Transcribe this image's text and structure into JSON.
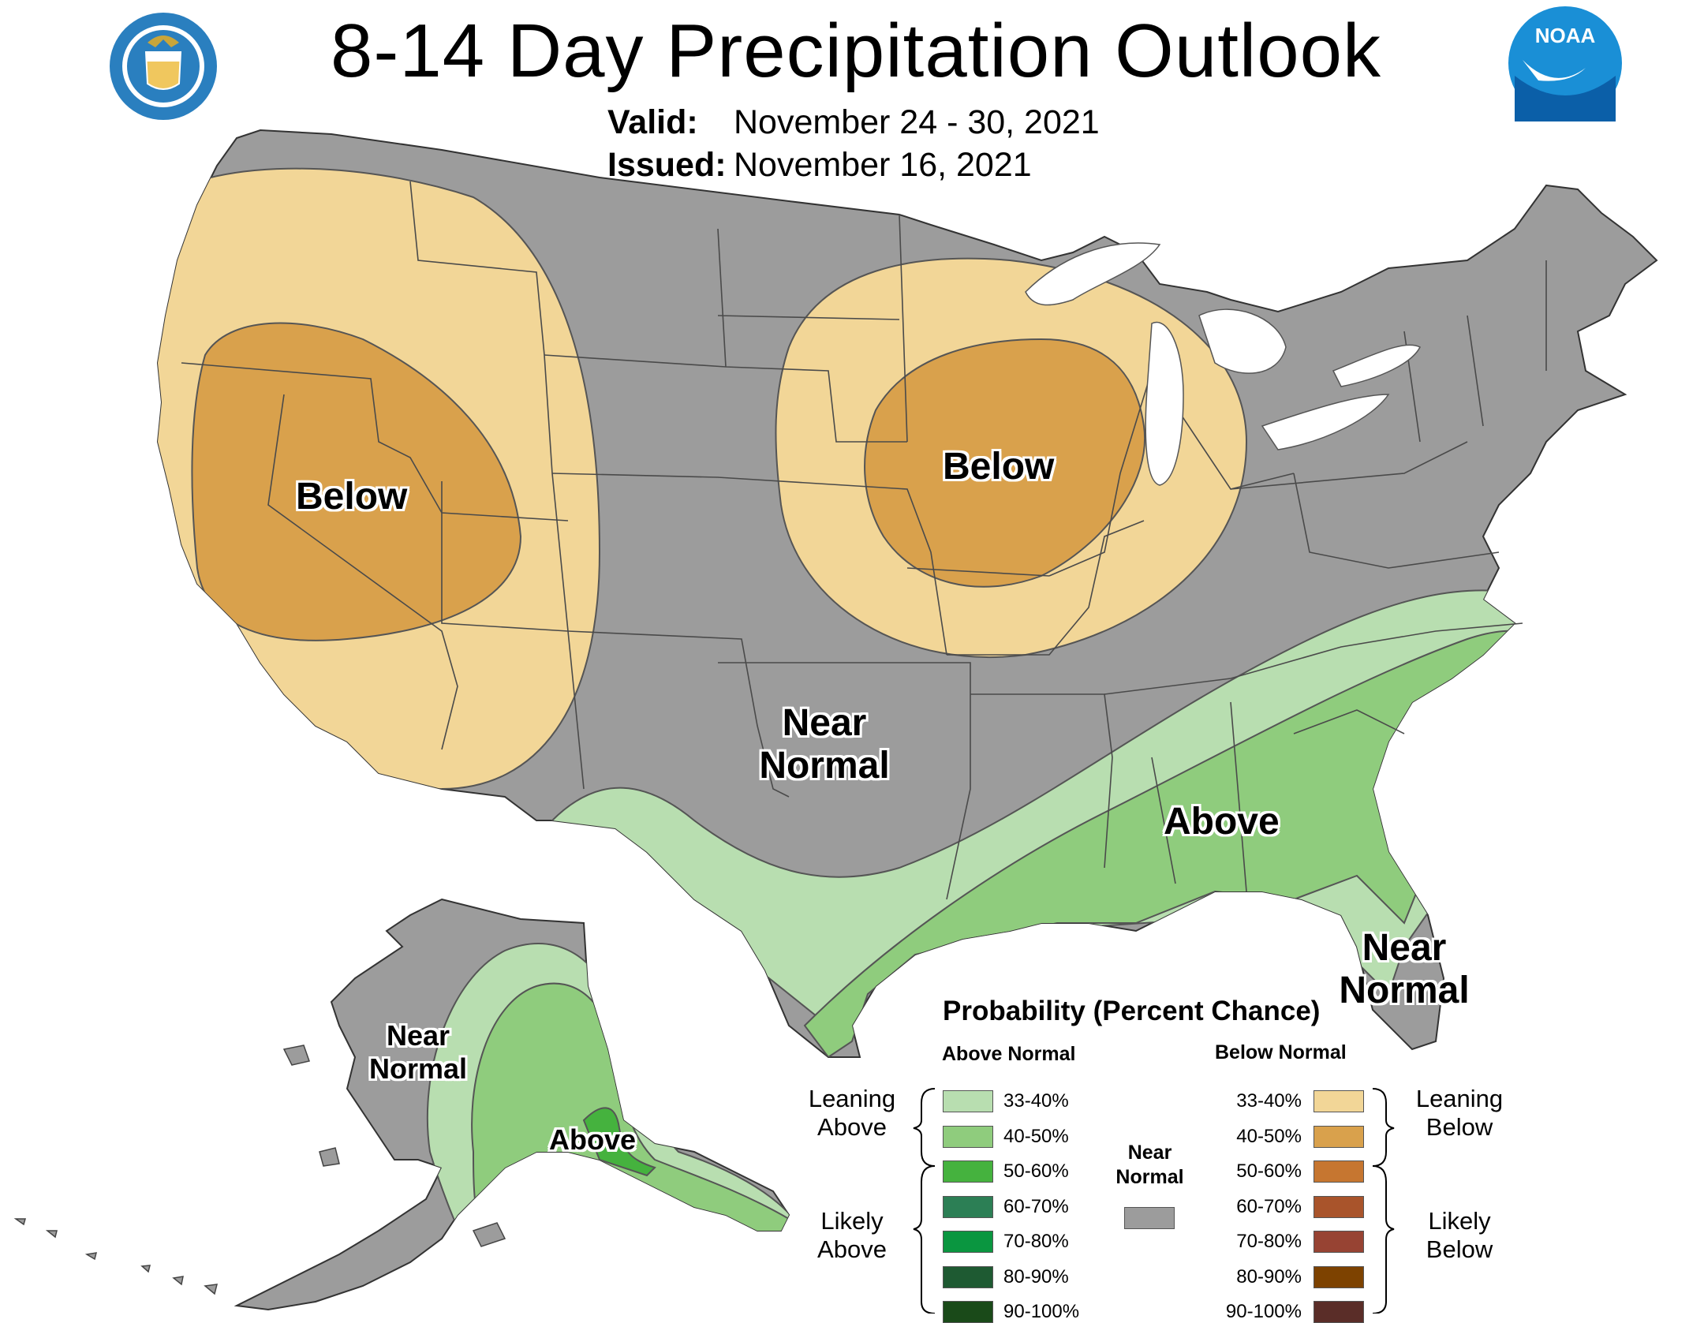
{
  "header": {
    "title": "8-14 Day Precipitation Outlook",
    "valid_label": "Valid:",
    "valid_dates": "November 24 - 30, 2021",
    "issued_label": "Issued:",
    "issued_date": "November 16, 2021"
  },
  "logos": {
    "left": "department-of-commerce-seal",
    "right": "noaa-logo",
    "right_text": "NOAA"
  },
  "map_labels": {
    "west_below": "Below",
    "midwest_below": "Below",
    "south_near_line1": "Near",
    "south_near_line2": "Normal",
    "southeast_above": "Above",
    "florida_near_line1": "Near",
    "florida_near_line2": "Normal",
    "alaska_near_line1": "Near",
    "alaska_near_line2": "Normal",
    "alaska_above": "Above"
  },
  "legend": {
    "title": "Probability (Percent Chance)",
    "above_header": "Above Normal",
    "below_header": "Below Normal",
    "near_label_line1": "Near",
    "near_label_line2": "Normal",
    "near_color": "#9c9c9c",
    "above_items": [
      {
        "range": "33-40%",
        "color": "#b8deb0"
      },
      {
        "range": "40-50%",
        "color": "#8fcc7d"
      },
      {
        "range": "50-60%",
        "color": "#45b23e"
      },
      {
        "range": "60-70%",
        "color": "#2c7f55"
      },
      {
        "range": "70-80%",
        "color": "#0a9640"
      },
      {
        "range": "80-90%",
        "color": "#1e5a32"
      },
      {
        "range": "90-100%",
        "color": "#1a4a19"
      }
    ],
    "below_items": [
      {
        "range": "33-40%",
        "color": "#f2d697"
      },
      {
        "range": "40-50%",
        "color": "#d9a14c"
      },
      {
        "range": "50-60%",
        "color": "#c67630"
      },
      {
        "range": "60-70%",
        "color": "#a9542b"
      },
      {
        "range": "70-80%",
        "color": "#974333"
      },
      {
        "range": "80-90%",
        "color": "#7d4200"
      },
      {
        "range": "90-100%",
        "color": "#5a2d28"
      }
    ],
    "leaning_above_line1": "Leaning",
    "leaning_above_line2": "Above",
    "likely_above_line1": "Likely",
    "likely_above_line2": "Above",
    "leaning_below_line1": "Leaning",
    "leaning_below_line2": "Below",
    "likely_below_line1": "Likely",
    "likely_below_line2": "Below"
  },
  "colors": {
    "near_normal": "#9c9c9c",
    "leaning_below": "#f2d697",
    "below_40_50": "#d9a14c",
    "leaning_above": "#b8deb0",
    "above_40_50": "#8fcc7d",
    "above_50_60": "#45b23e",
    "boundary": "#4a4a4a"
  }
}
